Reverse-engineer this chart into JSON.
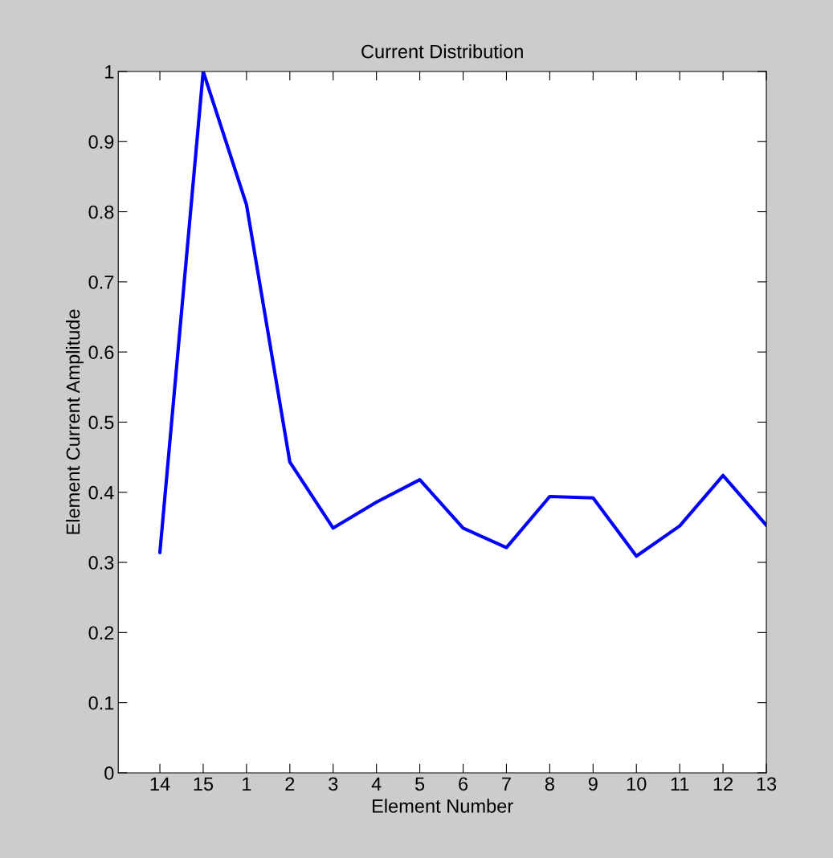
{
  "chart_data": {
    "type": "line",
    "title": "Current Distribution",
    "xlabel": "Element Number",
    "ylabel": "Element Current Amplitude",
    "categories": [
      "14",
      "15",
      "1",
      "2",
      "3",
      "4",
      "5",
      "6",
      "7",
      "8",
      "9",
      "10",
      "11",
      "12",
      "13"
    ],
    "series": [
      {
        "color": "#0000ff",
        "values": [
          0.314,
          1.0,
          0.81,
          0.443,
          0.349,
          0.386,
          0.418,
          0.349,
          0.321,
          0.394,
          0.392,
          0.309,
          0.352,
          0.424,
          0.353
        ]
      }
    ],
    "ylim": [
      0,
      1
    ],
    "yticks": [
      0,
      0.1,
      0.2,
      0.3,
      0.4,
      0.5,
      0.6,
      0.7,
      0.8,
      0.9,
      1
    ],
    "grid": false,
    "legend": false,
    "marker": "none",
    "line_style": "solid"
  }
}
